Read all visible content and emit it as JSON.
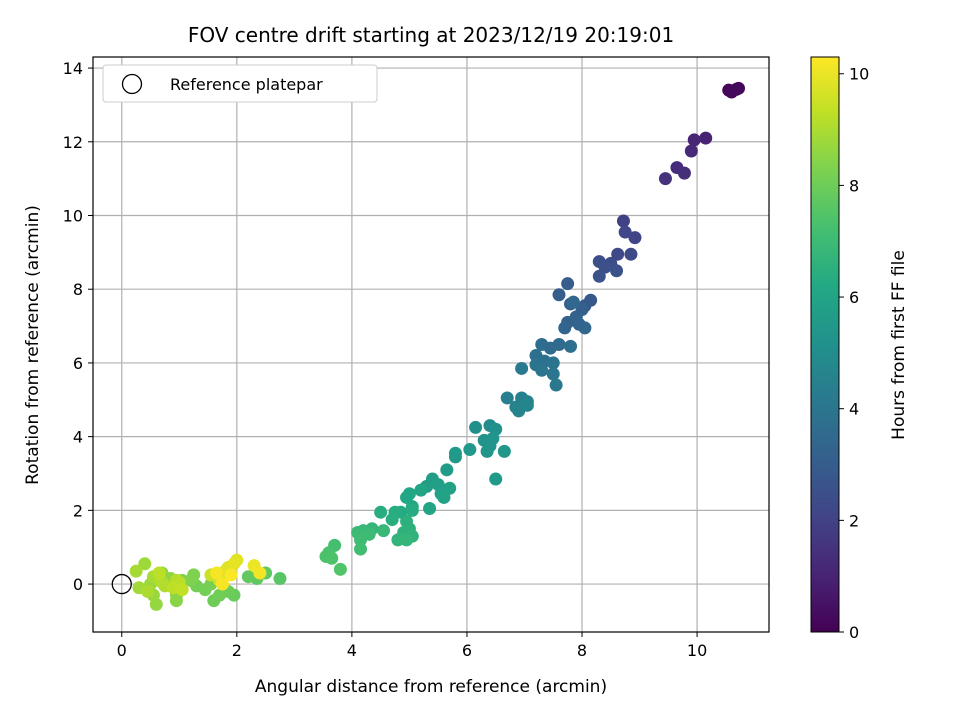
{
  "chart_data": {
    "type": "scatter",
    "title": "FOV centre drift starting at 2023/12/19 20:19:01",
    "xlabel": "Angular distance from reference (arcmin)",
    "ylabel": "Rotation from reference (arcmin)",
    "colorbar_label": "Hours from first FF file",
    "xlim": [
      -0.5,
      11.25
    ],
    "ylim": [
      -1.3,
      14.3
    ],
    "clim": [
      0,
      10.3
    ],
    "colormap": "viridis",
    "x_ticks": [
      0,
      2,
      4,
      6,
      8,
      10
    ],
    "y_ticks": [
      0,
      2,
      4,
      6,
      8,
      10,
      12,
      14
    ],
    "colorbar_ticks": [
      0,
      2,
      4,
      6,
      8,
      10
    ],
    "grid": true,
    "legend": {
      "placement": "top-left",
      "entries": [
        "Reference platepar"
      ]
    },
    "reference_point": {
      "x": 0,
      "y": 0
    },
    "points": [
      [
        10.55,
        13.4,
        0.1
      ],
      [
        10.72,
        13.45,
        0.15
      ],
      [
        10.6,
        13.35,
        0.2
      ],
      [
        10.68,
        13.42,
        0.25
      ],
      [
        10.15,
        12.1,
        1.0
      ],
      [
        9.95,
        12.05,
        1.1
      ],
      [
        9.9,
        11.75,
        1.2
      ],
      [
        9.65,
        11.3,
        1.3
      ],
      [
        9.78,
        11.15,
        1.4
      ],
      [
        9.45,
        11.0,
        1.5
      ],
      [
        8.72,
        9.85,
        2.0
      ],
      [
        8.92,
        9.4,
        2.1
      ],
      [
        8.75,
        9.55,
        2.15
      ],
      [
        8.62,
        8.95,
        2.25
      ],
      [
        8.85,
        8.95,
        2.3
      ],
      [
        8.5,
        8.7,
        2.4
      ],
      [
        8.3,
        8.75,
        2.45
      ],
      [
        8.4,
        8.6,
        2.5
      ],
      [
        8.6,
        8.5,
        2.55
      ],
      [
        8.3,
        8.35,
        2.6
      ],
      [
        8.15,
        7.7,
        2.8
      ],
      [
        8.05,
        7.55,
        2.9
      ],
      [
        7.75,
        8.15,
        3.0
      ],
      [
        7.6,
        7.85,
        3.05
      ],
      [
        7.8,
        7.6,
        3.1
      ],
      [
        8.0,
        7.45,
        3.15
      ],
      [
        7.9,
        7.25,
        3.2
      ],
      [
        7.75,
        7.1,
        3.25
      ],
      [
        7.95,
        7.05,
        3.3
      ],
      [
        7.7,
        6.95,
        3.35
      ],
      [
        8.05,
        6.95,
        3.4
      ],
      [
        7.85,
        7.65,
        3.45
      ],
      [
        7.6,
        6.5,
        3.55
      ],
      [
        7.45,
        6.4,
        3.6
      ],
      [
        7.3,
        6.5,
        3.65
      ],
      [
        7.8,
        6.45,
        3.7
      ],
      [
        7.2,
        6.2,
        3.8
      ],
      [
        7.35,
        6.05,
        3.85
      ],
      [
        7.2,
        5.95,
        3.9
      ],
      [
        7.5,
        6.0,
        3.95
      ],
      [
        7.3,
        5.8,
        4.0
      ],
      [
        7.5,
        5.7,
        4.05
      ],
      [
        7.55,
        5.4,
        4.1
      ],
      [
        6.95,
        5.85,
        4.2
      ],
      [
        6.7,
        5.05,
        4.4
      ],
      [
        6.95,
        5.05,
        4.45
      ],
      [
        6.85,
        4.8,
        4.5
      ],
      [
        7.05,
        4.95,
        4.55
      ],
      [
        6.9,
        4.7,
        4.6
      ],
      [
        7.05,
        4.85,
        4.65
      ],
      [
        6.4,
        4.3,
        5.0
      ],
      [
        6.15,
        4.25,
        5.1
      ],
      [
        6.5,
        4.2,
        5.15
      ],
      [
        6.3,
        3.9,
        5.2
      ],
      [
        6.4,
        3.75,
        5.25
      ],
      [
        6.45,
        3.95,
        5.3
      ],
      [
        6.35,
        3.6,
        5.35
      ],
      [
        6.65,
        3.6,
        5.4
      ],
      [
        6.05,
        3.65,
        5.45
      ],
      [
        5.8,
        3.45,
        5.5
      ],
      [
        5.8,
        3.55,
        5.55
      ],
      [
        6.5,
        2.85,
        5.6
      ],
      [
        5.65,
        3.1,
        5.65
      ],
      [
        5.4,
        2.85,
        5.7
      ],
      [
        5.3,
        2.65,
        5.75
      ],
      [
        5.5,
        2.7,
        5.8
      ],
      [
        5.7,
        2.6,
        5.85
      ],
      [
        5.55,
        2.45,
        5.9
      ],
      [
        5.6,
        2.35,
        5.95
      ],
      [
        5.35,
        2.05,
        6.0
      ],
      [
        5.2,
        2.55,
        6.05
      ],
      [
        5.0,
        2.45,
        6.1
      ],
      [
        4.95,
        2.35,
        6.15
      ],
      [
        5.05,
        2.1,
        6.2
      ],
      [
        4.85,
        1.95,
        6.25
      ],
      [
        5.05,
        2.0,
        6.3
      ],
      [
        4.75,
        1.95,
        6.35
      ],
      [
        4.5,
        1.95,
        6.4
      ],
      [
        4.7,
        1.75,
        6.45
      ],
      [
        4.95,
        1.7,
        6.5
      ],
      [
        5.0,
        1.5,
        6.55
      ],
      [
        4.9,
        1.4,
        6.6
      ],
      [
        5.05,
        1.3,
        6.65
      ],
      [
        4.8,
        1.2,
        6.7
      ],
      [
        4.95,
        1.2,
        6.75
      ],
      [
        4.35,
        1.5,
        6.8
      ],
      [
        4.55,
        1.45,
        6.85
      ],
      [
        4.2,
        1.45,
        6.9
      ],
      [
        4.1,
        1.4,
        6.95
      ],
      [
        4.3,
        1.35,
        7.0
      ],
      [
        4.15,
        1.2,
        7.05
      ],
      [
        4.15,
        0.95,
        7.1
      ],
      [
        3.7,
        1.05,
        7.2
      ],
      [
        3.6,
        0.85,
        7.3
      ],
      [
        3.55,
        0.75,
        7.35
      ],
      [
        3.65,
        0.7,
        7.4
      ],
      [
        3.8,
        0.4,
        7.45
      ],
      [
        2.75,
        0.15,
        7.6
      ],
      [
        2.5,
        0.3,
        7.7
      ],
      [
        2.35,
        0.15,
        7.75
      ],
      [
        2.2,
        0.2,
        7.8
      ],
      [
        1.95,
        -0.3,
        7.9
      ],
      [
        1.85,
        -0.2,
        7.95
      ],
      [
        1.6,
        -0.45,
        8.0
      ],
      [
        1.7,
        -0.3,
        8.05
      ],
      [
        1.45,
        -0.15,
        8.1
      ],
      [
        1.3,
        -0.05,
        8.15
      ],
      [
        1.55,
        0.0,
        8.2
      ],
      [
        1.2,
        0.1,
        8.25
      ],
      [
        1.25,
        0.25,
        8.3
      ],
      [
        1.05,
        0.1,
        8.35
      ],
      [
        0.95,
        -0.45,
        8.45
      ],
      [
        0.95,
        -0.3,
        8.5
      ],
      [
        0.85,
        0.15,
        8.55
      ],
      [
        0.7,
        0.3,
        8.6
      ],
      [
        0.6,
        -0.55,
        8.65
      ],
      [
        0.55,
        -0.3,
        8.7
      ],
      [
        0.5,
        0.0,
        8.75
      ],
      [
        0.4,
        0.55,
        8.8
      ],
      [
        0.3,
        -0.1,
        8.85
      ],
      [
        0.25,
        0.35,
        8.9
      ],
      [
        0.55,
        0.2,
        8.95
      ],
      [
        0.45,
        -0.2,
        9.0
      ],
      [
        0.75,
        -0.05,
        9.05
      ],
      [
        0.7,
        0.05,
        9.1
      ],
      [
        0.95,
        0.1,
        9.15
      ],
      [
        1.0,
        0.05,
        9.2
      ],
      [
        0.65,
        0.3,
        9.25
      ],
      [
        0.9,
        -0.1,
        9.3
      ],
      [
        1.05,
        -0.15,
        9.35
      ],
      [
        1.55,
        0.25,
        9.5
      ],
      [
        1.7,
        0.1,
        9.6
      ],
      [
        1.8,
        0.35,
        9.7
      ],
      [
        1.75,
        0.15,
        9.75
      ],
      [
        1.85,
        0.45,
        9.8
      ],
      [
        2.0,
        0.65,
        9.85
      ],
      [
        1.95,
        0.55,
        9.9
      ],
      [
        2.3,
        0.5,
        10.0
      ],
      [
        2.4,
        0.3,
        10.1
      ],
      [
        1.65,
        0.3,
        10.15
      ],
      [
        1.75,
        0.0,
        10.2
      ],
      [
        1.9,
        0.25,
        10.25
      ]
    ]
  }
}
